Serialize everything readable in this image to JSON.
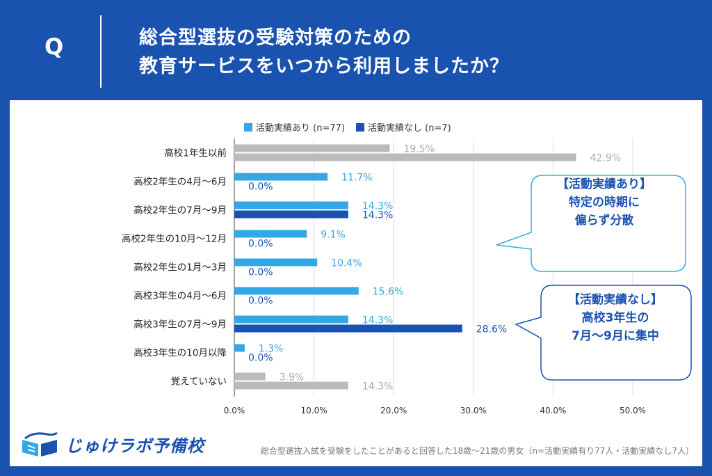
{
  "header": {
    "q_letter": "Q",
    "title_line1": "総合型選抜の受験対策のための",
    "title_line2": "教育サービスをいつから利用しましたか？"
  },
  "chart_data": {
    "type": "bar",
    "orientation": "horizontal",
    "categories": [
      "高校1年生以前",
      "高校2年生の4月〜6月",
      "高校2年生の7月〜9月",
      "高校2年生の10月〜12月",
      "高校2年生の1月〜3月",
      "高校3年生の4月〜6月",
      "高校3年生の7月〜9月",
      "高校3年生の10月以降",
      "覚えていない"
    ],
    "series": [
      {
        "name": "活動実績あり (n=77)",
        "values": [
          19.5,
          11.7,
          14.3,
          9.1,
          10.4,
          15.6,
          14.3,
          1.3,
          3.9
        ],
        "value_labels": [
          "19.5%",
          "11.7%",
          "14.3%",
          "9.1%",
          "10.4%",
          "15.6%",
          "14.3%",
          "1.3%",
          "3.9%"
        ]
      },
      {
        "name": "活動実績なし (n=7)",
        "values": [
          42.9,
          0.0,
          14.3,
          0.0,
          0.0,
          0.0,
          28.6,
          0.0,
          14.3
        ],
        "value_labels": [
          "42.9%",
          "0.0%",
          "14.3%",
          "0.0%",
          "0.0%",
          "0.0%",
          "28.6%",
          "0.0%",
          "14.3%"
        ]
      }
    ],
    "xlim": [
      0,
      50
    ],
    "xticks": [
      0,
      10,
      20,
      30,
      40,
      50
    ],
    "xtick_labels": [
      "0.0%",
      "10.0%",
      "20.0%",
      "30.0%",
      "40.0%",
      "50.0%"
    ],
    "grid": "vertical",
    "legend_position": "top",
    "colors": {
      "series_1": "#33a8e4",
      "series_2": "#1a52b0",
      "neutral": "#bbbbbb"
    }
  },
  "callouts": {
    "a_lines": [
      "【活動実績あり】",
      "特定の時期に",
      "偏らず分散"
    ],
    "b_lines": [
      "【活動実績なし】",
      "高校3年生の",
      "7月〜9月に集中"
    ]
  },
  "logo": {
    "name": "じゅけラボ予備校",
    "icon": "open-book-icon"
  },
  "footnote": "総合型選抜入試を受験をしたことがあると回答した18歳〜21歳の男女（n=活動実績有り77人・活動実績なし7人）"
}
